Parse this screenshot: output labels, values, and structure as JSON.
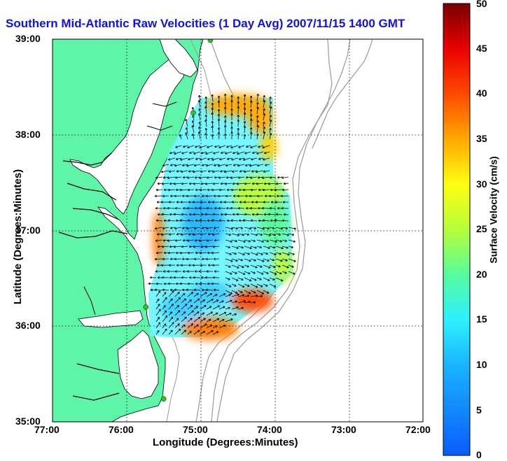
{
  "title": "Southern Mid-Atlantic Raw Velocities (1 Day Avg) 2007/11/15 1400 GMT",
  "xlabel": "Longitude (Degrees:Minutes)",
  "ylabel": "Latitude (Degrees:Minutes)",
  "colorbar": {
    "label": "Surface Velocity (cm/s)",
    "ticks": [
      "0",
      "5",
      "10",
      "15",
      "20",
      "25",
      "30",
      "35",
      "40",
      "45",
      "50"
    ],
    "range": [
      0,
      50
    ]
  },
  "map": {
    "x_ticks": [
      "77:00",
      "76:00",
      "75:00",
      "74:00",
      "73:00",
      "72:00"
    ],
    "y_ticks": [
      "39:00",
      "38:00",
      "37:00",
      "36:00",
      "35:00"
    ],
    "lon_range": [
      -77,
      -72
    ],
    "lat_range": [
      35,
      39
    ],
    "grid": true,
    "land_color": "#5ef5a8",
    "water_color": "#ffffff",
    "contour_color": "#999999",
    "station_color": "#22cc22",
    "stations": [
      {
        "lon": -74.87,
        "lat": 38.99
      },
      {
        "lon": -75.1,
        "lat": 38.23
      },
      {
        "lon": -75.74,
        "lat": 36.2
      },
      {
        "lon": -75.5,
        "lat": 35.24
      }
    ]
  }
}
